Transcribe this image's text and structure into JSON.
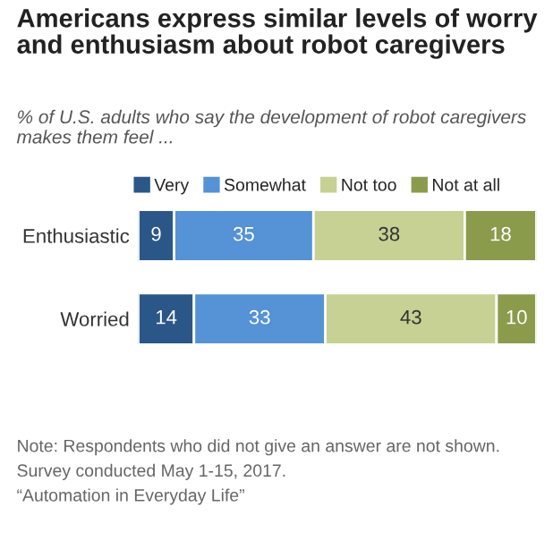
{
  "chart_data": {
    "type": "bar",
    "orientation": "horizontal",
    "stacked": true,
    "data_labels": true,
    "title": "Americans express similar levels of worry and enthusiasm about robot caregivers",
    "subtitle": "% of U.S. adults who say the development of robot caregivers makes them feel ...",
    "categories": [
      "Enthusiastic",
      "Worried"
    ],
    "series": [
      {
        "name": "Very",
        "color": "#2b5788",
        "values": [
          9,
          14
        ]
      },
      {
        "name": "Somewhat",
        "color": "#5592d6",
        "values": [
          35,
          33
        ]
      },
      {
        "name": "Not too",
        "color": "#c6d193",
        "values": [
          38,
          43
        ]
      },
      {
        "name": "Not at all",
        "color": "#8b9b4c",
        "values": [
          18,
          10
        ]
      }
    ],
    "legend": "top left",
    "annotations": [
      "Note: Respondents who did not give an answer are not shown.",
      "Survey conducted May 1-15, 2017.",
      "“Automation in Everyday Life”"
    ]
  }
}
